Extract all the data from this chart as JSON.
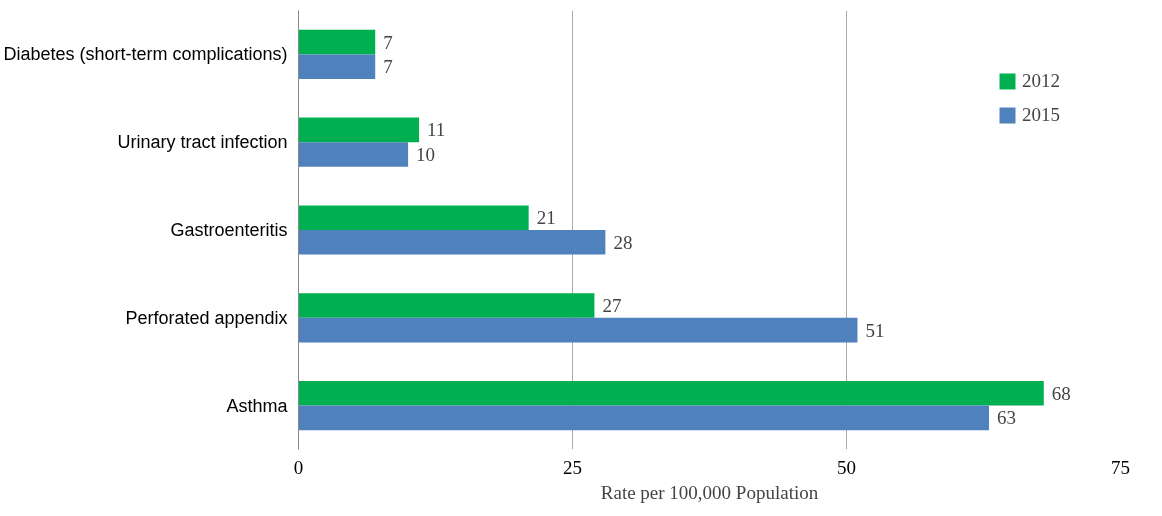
{
  "chart_data": {
    "type": "bar",
    "orientation": "horizontal",
    "xlabel": "Rate per 100,000 Population",
    "categories": [
      "Diabetes (short-term complications)",
      "Urinary tract infection",
      "Gastroenteritis",
      "Perforated appendix",
      "Asthma"
    ],
    "series": [
      {
        "name": "2012",
        "color": "#00b050",
        "values": [
          7,
          11,
          21,
          27,
          68
        ]
      },
      {
        "name": "2015",
        "color": "#4f81bd",
        "values": [
          7,
          10,
          28,
          51,
          63
        ]
      }
    ],
    "xlim": [
      0,
      75
    ],
    "xticks": [
      0,
      25,
      50,
      75
    ],
    "grid": "x",
    "legend": "top right",
    "data_labels": true
  }
}
